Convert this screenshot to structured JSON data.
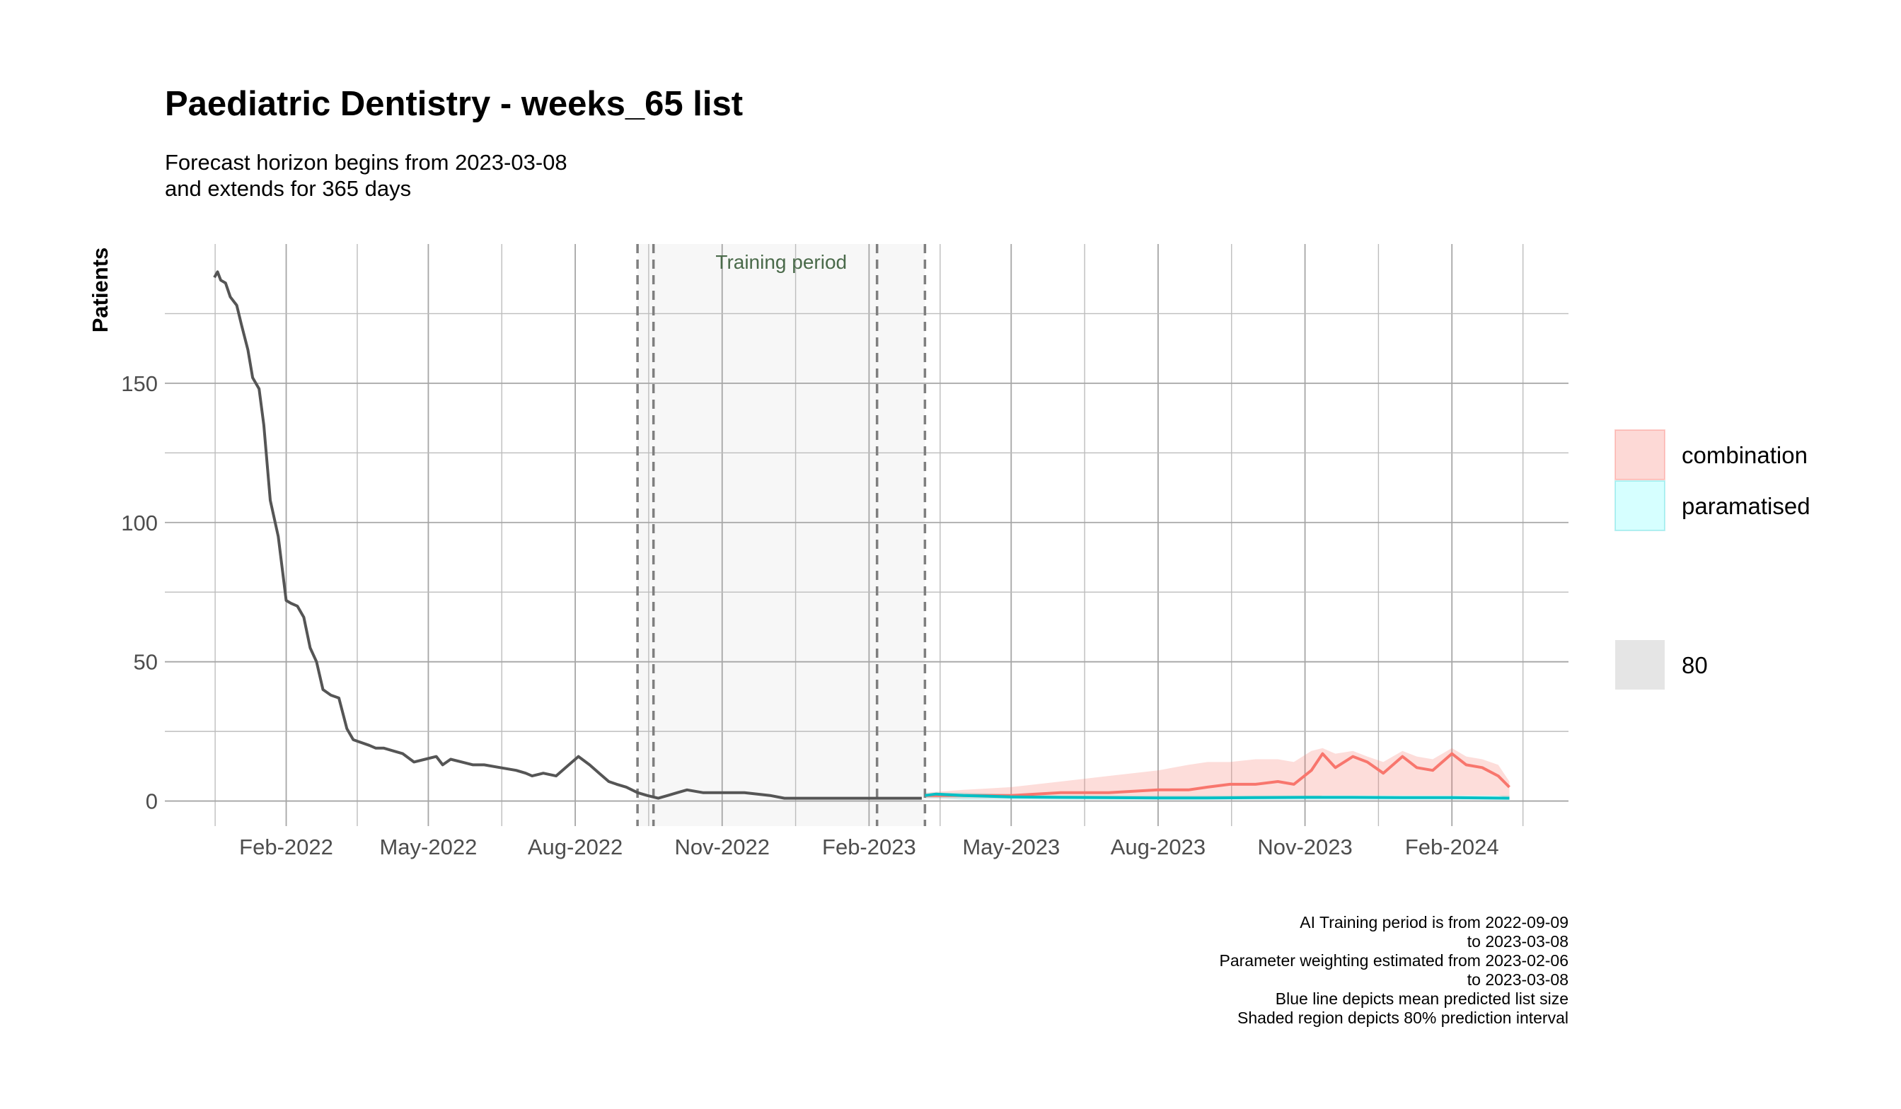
{
  "chart_data": {
    "type": "line",
    "title": "Paediatric Dentistry - weeks_65 list",
    "subtitle": [
      "Forecast horizon begins from 2023-03-08",
      "and extends for 365 days"
    ],
    "xlabel": "",
    "ylabel": "Patients",
    "x_ticks": [
      "2022-02-01",
      "2022-05-01",
      "2022-08-01",
      "2022-11-01",
      "2023-02-01",
      "2023-05-01",
      "2023-08-01",
      "2023-11-01",
      "2024-02-01"
    ],
    "x_tick_labels": [
      "Feb-2022",
      "May-2022",
      "Aug-2022",
      "Nov-2022",
      "Feb-2023",
      "May-2023",
      "Aug-2023",
      "Nov-2023",
      "Feb-2024"
    ],
    "xlim": [
      "2021-11-17",
      "2024-04-14"
    ],
    "ylim": [
      -9,
      200
    ],
    "y_ticks": [
      0,
      50,
      100,
      150
    ],
    "grid": true,
    "training_period": {
      "start": "2022-09-09",
      "end": "2023-03-08",
      "label": "Training period"
    },
    "vlines": [
      "2022-09-09",
      "2022-09-19",
      "2023-02-06",
      "2023-03-08"
    ],
    "observed": {
      "color": "#555555",
      "x": [
        "2021-12-18",
        "2021-12-20",
        "2021-12-22",
        "2021-12-25",
        "2021-12-28",
        "2022-01-01",
        "2022-01-04",
        "2022-01-08",
        "2022-01-11",
        "2022-01-15",
        "2022-01-18",
        "2022-01-22",
        "2022-01-27",
        "2022-02-01",
        "2022-02-04",
        "2022-02-08",
        "2022-02-12",
        "2022-02-16",
        "2022-02-20",
        "2022-02-24",
        "2022-03-01",
        "2022-03-06",
        "2022-03-11",
        "2022-03-15",
        "2022-03-20",
        "2022-03-25",
        "2022-03-29",
        "2022-04-03",
        "2022-04-09",
        "2022-04-15",
        "2022-04-22",
        "2022-04-29",
        "2022-05-06",
        "2022-05-10",
        "2022-05-15",
        "2022-05-22",
        "2022-05-29",
        "2022-06-05",
        "2022-06-15",
        "2022-06-25",
        "2022-07-01",
        "2022-07-05",
        "2022-07-12",
        "2022-07-20",
        "2022-07-28",
        "2022-08-03",
        "2022-08-10",
        "2022-08-16",
        "2022-08-22",
        "2022-08-27",
        "2022-09-02",
        "2022-09-09",
        "2022-09-15",
        "2022-09-22",
        "2022-09-28",
        "2022-10-04",
        "2022-10-10",
        "2022-10-20",
        "2022-11-01",
        "2022-11-15",
        "2022-12-01",
        "2022-12-10",
        "2023-01-01",
        "2023-02-01",
        "2023-03-06"
      ],
      "y": [
        188,
        190,
        187,
        186,
        181,
        178,
        171,
        162,
        152,
        148,
        135,
        108,
        95,
        72,
        71,
        70,
        66,
        55,
        50,
        40,
        38,
        37,
        26,
        22,
        21,
        20,
        19,
        19,
        18,
        17,
        14,
        15,
        16,
        13,
        15,
        14,
        13,
        13,
        12,
        11,
        10,
        9,
        10,
        9,
        13,
        16,
        13,
        10,
        7,
        6,
        5,
        3,
        2,
        1,
        2,
        3,
        4,
        3,
        3,
        3,
        2,
        1,
        1,
        1,
        1
      ]
    },
    "series": [
      {
        "name": "combination",
        "color": "#f8766d",
        "fill": "#f8766d",
        "x": [
          "2023-03-08",
          "2023-04-01",
          "2023-05-01",
          "2023-06-01",
          "2023-07-01",
          "2023-08-01",
          "2023-08-20",
          "2023-09-01",
          "2023-09-15",
          "2023-10-01",
          "2023-10-15",
          "2023-10-25",
          "2023-11-05",
          "2023-11-12",
          "2023-11-20",
          "2023-12-01",
          "2023-12-10",
          "2023-12-20",
          "2024-01-01",
          "2024-01-10",
          "2024-01-20",
          "2024-02-01",
          "2024-02-10",
          "2024-02-20",
          "2024-03-01",
          "2024-03-08"
        ],
        "values": [
          2,
          2,
          2,
          3,
          3,
          4,
          4,
          5,
          6,
          6,
          7,
          6,
          11,
          17,
          12,
          16,
          14,
          10,
          16,
          12,
          11,
          17,
          13,
          12,
          9,
          5
        ],
        "upper": [
          3,
          4,
          5,
          7,
          9,
          11,
          13,
          14,
          14,
          15,
          15,
          14,
          18,
          19,
          17,
          18,
          16,
          14,
          18,
          16,
          15,
          19,
          16,
          15,
          13,
          7
        ],
        "lower": [
          1,
          1,
          1,
          1,
          1,
          1,
          1,
          1,
          1,
          1,
          1,
          1,
          1,
          2,
          2,
          2,
          2,
          2,
          2,
          2,
          2,
          2,
          2,
          2,
          2,
          1
        ]
      },
      {
        "name": "paramatised",
        "color": "#00bfc4",
        "fill": "#00bfc4",
        "x": [
          "2023-03-08",
          "2023-03-15",
          "2023-04-01",
          "2023-05-01",
          "2023-06-01",
          "2023-07-01",
          "2023-08-01",
          "2023-09-01",
          "2023-10-01",
          "2023-11-01",
          "2023-12-01",
          "2024-01-01",
          "2024-02-01",
          "2024-03-08"
        ],
        "values": [
          2,
          2.5,
          2,
          1.5,
          1.3,
          1.2,
          1.1,
          1.1,
          1.2,
          1.3,
          1.3,
          1.2,
          1.2,
          1.0
        ],
        "upper": [
          2.5,
          3,
          3,
          2.5,
          2,
          2,
          2,
          2,
          2,
          2,
          2,
          2,
          2,
          2
        ],
        "lower": [
          1,
          1,
          0.5,
          0.5,
          0.5,
          0.5,
          0.5,
          0.5,
          0.5,
          0.5,
          0.5,
          0.5,
          0.5,
          0.5
        ]
      }
    ],
    "legend": {
      "position": "right",
      "items": [
        {
          "label": "combination",
          "color": "#f8766d"
        },
        {
          "label": "paramatised",
          "color": "#00bfc4"
        }
      ],
      "interval_label": "80",
      "interval_color": "#bdbdbd"
    },
    "caption": [
      "AI Training period is from 2022-09-09",
      "to 2023-03-08",
      "Parameter weighting estimated from 2023-02-06",
      "to 2023-03-08",
      "Blue line depicts mean predicted list size",
      "Shaded region depicts 80% prediction interval"
    ]
  }
}
